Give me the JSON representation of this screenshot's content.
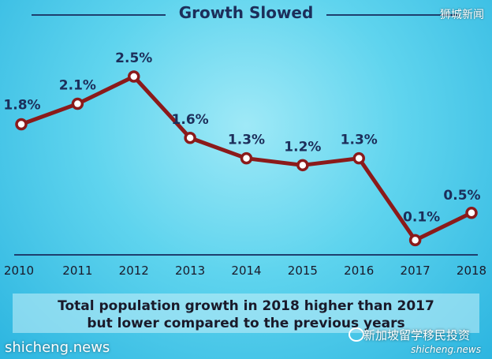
{
  "chart_data": {
    "type": "line",
    "title": "Growth Slowed",
    "categories": [
      "2010",
      "2011",
      "2012",
      "2013",
      "2014",
      "2015",
      "2016",
      "2017",
      "2018"
    ],
    "series": [
      {
        "values": [
          1.8,
          2.1,
          2.5,
          1.6,
          1.3,
          1.2,
          1.3,
          0.1,
          0.5
        ]
      }
    ],
    "data_labels": [
      "1.8%",
      "2.1%",
      "2.5%",
      "1.6%",
      "1.3%",
      "1.2%",
      "1.3%",
      "0.1%",
      "0.5%"
    ],
    "xlabel": "",
    "ylabel": "",
    "grid": false,
    "legend": "none",
    "colors": {
      "line": "#8b1a1a",
      "marker_fill": "#ffffff",
      "label": "#1c2e5a",
      "baseline": "#1e3f6e"
    }
  },
  "caption": {
    "line1": "Total population growth in 2018 higher than 2017",
    "line2": "but lower compared to the previous years"
  },
  "watermarks": {
    "top_right": "狮城新闻",
    "bottom_left": "shicheng.news",
    "bottom_right_cn": "新加坡留学移民投资",
    "bottom_right_en": "shicheng.news"
  }
}
